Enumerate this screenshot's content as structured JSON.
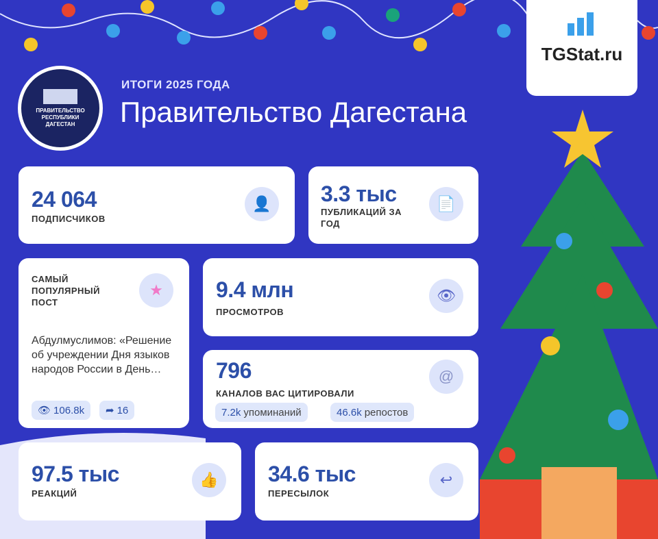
{
  "header": {
    "subtitle": "ИТОГИ 2025 ГОДА",
    "title": "Правительство Дагестана",
    "channel_logo_text": [
      "ПРАВИТЕЛЬСТВО",
      "РЕСПУБЛИКИ",
      "ДАГЕСТАН"
    ],
    "brand": "TGStat.ru"
  },
  "stats": {
    "subscribers": {
      "value": "24 064",
      "label": "ПОДПИСЧИКОВ",
      "icon": "user-icon"
    },
    "publications": {
      "value": "3.3 тыс",
      "label": "ПУБЛИКАЦИЙ ЗА ГОД",
      "icon": "document-icon"
    },
    "popular_post": {
      "label": "САМЫЙ ПОПУЛЯРНЫЙ ПОСТ",
      "text": "Абдулмуслимов: «Решение об учреждении Дня языков народов России в День…",
      "views": "106.8k",
      "shares": "16",
      "icon": "star-icon"
    },
    "views": {
      "value": "9.4 млн",
      "label": "ПРОСМОТРОВ",
      "icon": "eye-icon"
    },
    "citations": {
      "value": "796",
      "label": "КАНАЛОВ ВАС ЦИТИРОВАЛИ",
      "mentions_value": "7.2k",
      "mentions_label": "упоминаний",
      "reposts_value": "46.6k",
      "reposts_label": "репостов",
      "icon": "at-icon"
    },
    "reactions": {
      "value": "97.5 тыс",
      "label": "РЕАКЦИЙ",
      "icon": "thumbs-up-icon"
    },
    "forwards": {
      "value": "34.6 тыс",
      "label": "ПЕРЕСЫЛОК",
      "icon": "reply-icon"
    }
  },
  "colors": {
    "background": "#3036c2",
    "accent": "#2c4fa8",
    "tree": "#1f8a4c"
  }
}
